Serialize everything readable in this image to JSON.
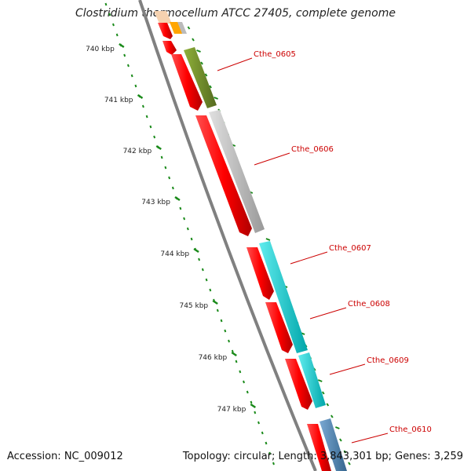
{
  "title": "Clostridium thermocellum ATCC 27405, complete genome",
  "accession": "Accession: NC_009012",
  "summary": "Topology: circular; Length: 3,843,301 bp; Genes: 3,259",
  "ruler": {
    "ticks": [
      "740 kbp",
      "741 kbp",
      "742 kbp",
      "743 kbp",
      "744 kbp",
      "745 kbp",
      "746 kbp",
      "747 kbp"
    ]
  },
  "genes": [
    {
      "label": "Cthe_0605",
      "color": "#6b8e23"
    },
    {
      "label": "Cthe_0606",
      "color": "#bdbdbd"
    },
    {
      "label": "Cthe_0607",
      "color": "#00c8cc"
    },
    {
      "label": "Cthe_0608",
      "color": "#00c8cc"
    },
    {
      "label": "Cthe_0609",
      "color": "#00c8cc"
    },
    {
      "label": "Cthe_0610",
      "color": "#4682b4"
    }
  ],
  "colors": {
    "cds": "#ff0000",
    "backbone": "#888888",
    "ruler": "#1a8a1a",
    "label": "#cc0000",
    "orange_feature": "#ffa500"
  }
}
